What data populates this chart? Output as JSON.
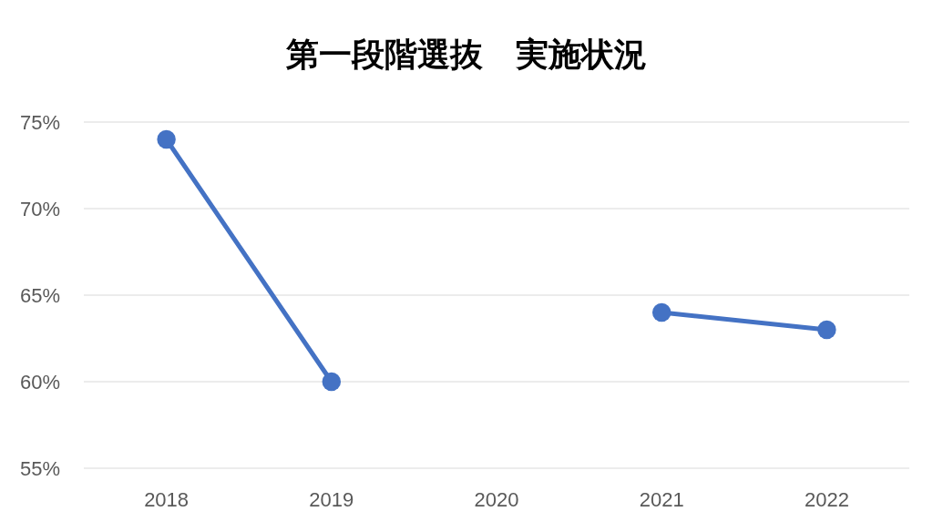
{
  "chart_data": {
    "type": "line",
    "title": "第一段階選抜　実施状況",
    "categories": [
      "2018",
      "2019",
      "2020",
      "2021",
      "2022"
    ],
    "series": [
      {
        "color": "#4472c4",
        "values": [
          74,
          60,
          null,
          64,
          63
        ]
      }
    ],
    "ylim": [
      55,
      75
    ],
    "yticks": [
      {
        "value": 55,
        "label": "55%"
      },
      {
        "value": 60,
        "label": "60%"
      },
      {
        "value": 65,
        "label": "65%"
      },
      {
        "value": 70,
        "label": "70%"
      },
      {
        "value": 75,
        "label": "75%"
      }
    ],
    "grid": "y",
    "marker": "circle",
    "line_style": "solid"
  }
}
